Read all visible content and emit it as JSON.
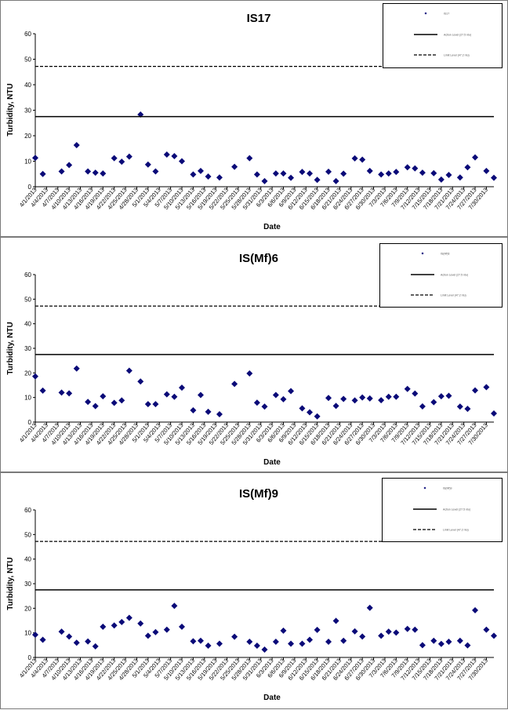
{
  "chart_data": [
    {
      "type": "scatter",
      "title": "IS17",
      "xlabel": "Date",
      "ylabel": "Turbidity, NTU",
      "ylim": [
        0,
        60
      ],
      "yticks": [
        "0",
        "10",
        "20",
        "30",
        "40",
        "50",
        "60"
      ],
      "xticks": [
        "4/1/2013",
        "4/4/2013",
        "4/7/2013",
        "4/10/2013",
        "4/13/2013",
        "4/16/2013",
        "4/19/2013",
        "4/22/2013",
        "4/25/2013",
        "4/28/2013",
        "5/1/2013",
        "5/4/2013",
        "5/7/2013",
        "5/10/2013",
        "5/13/2013",
        "5/16/2013",
        "5/19/2013",
        "5/22/2013",
        "5/25/2013",
        "5/28/2013",
        "5/31/2013",
        "6/3/2013",
        "6/6/2013",
        "6/9/2013",
        "6/12/2013",
        "6/15/2013",
        "6/18/2013",
        "6/21/2013",
        "6/24/2013",
        "6/27/2013",
        "6/30/2013",
        "7/3/2013",
        "7/6/2013",
        "7/9/2013",
        "7/12/2013",
        "7/15/2013",
        "7/18/2013",
        "7/21/2013",
        "7/24/2013",
        "7/27/2013",
        "7/30/2013"
      ],
      "series": [
        {
          "kind": "points",
          "points": [
            [
              "4/1/2013",
              11.3
            ],
            [
              "4/3/2013",
              5.0
            ],
            [
              "4/8/2013",
              6.0
            ],
            [
              "4/10/2013",
              8.5
            ],
            [
              "4/12/2013",
              16.3
            ],
            [
              "4/15/2013",
              6.0
            ],
            [
              "4/17/2013",
              5.5
            ],
            [
              "4/19/2013",
              5.2
            ],
            [
              "4/22/2013",
              11.2
            ],
            [
              "4/24/2013",
              9.8
            ],
            [
              "4/26/2013",
              11.8
            ],
            [
              "4/29/2013",
              28.3
            ],
            [
              "5/1/2013",
              8.7
            ],
            [
              "5/3/2013",
              6.0
            ],
            [
              "5/6/2013",
              12.6
            ],
            [
              "5/8/2013",
              12.0
            ],
            [
              "5/10/2013",
              10.0
            ],
            [
              "5/13/2013",
              4.8
            ],
            [
              "5/15/2013",
              6.2
            ],
            [
              "5/17/2013",
              4.0
            ],
            [
              "5/20/2013",
              3.6
            ],
            [
              "5/24/2013",
              7.8
            ],
            [
              "5/28/2013",
              11.2
            ],
            [
              "5/30/2013",
              4.8
            ],
            [
              "6/1/2013",
              2.2
            ],
            [
              "6/4/2013",
              5.2
            ],
            [
              "6/6/2013",
              5.2
            ],
            [
              "6/8/2013",
              3.5
            ],
            [
              "6/11/2013",
              5.8
            ],
            [
              "6/13/2013",
              5.2
            ],
            [
              "6/15/2013",
              2.7
            ],
            [
              "6/18/2013",
              5.9
            ],
            [
              "6/20/2013",
              2.2
            ],
            [
              "6/22/2013",
              5.1
            ],
            [
              "6/25/2013",
              11.1
            ],
            [
              "6/27/2013",
              10.6
            ],
            [
              "6/29/2013",
              6.2
            ],
            [
              "7/2/2013",
              4.8
            ],
            [
              "7/4/2013",
              5.2
            ],
            [
              "7/6/2013",
              5.8
            ],
            [
              "7/9/2013",
              7.6
            ],
            [
              "7/11/2013",
              7.2
            ],
            [
              "7/13/2013",
              5.5
            ],
            [
              "7/16/2013",
              5.3
            ],
            [
              "7/18/2013",
              2.8
            ],
            [
              "7/20/2013",
              4.6
            ],
            [
              "7/23/2013",
              3.6
            ],
            [
              "7/25/2013",
              7.6
            ],
            [
              "7/27/2013",
              11.5
            ],
            [
              "7/30/2013",
              6.2
            ],
            [
              "8/1/2013",
              3.5
            ]
          ]
        },
        {
          "kind": "solid-hline",
          "value": 27.5
        },
        {
          "kind": "dashed-hline",
          "value": 47.2
        }
      ],
      "legend_position": "top-right",
      "legend": [
        "IS17",
        "Action Level (27.5 ntu)",
        "Limit Level (47.2 ntu)"
      ]
    },
    {
      "type": "scatter",
      "title": "IS(Mf)6",
      "xlabel": "Date",
      "ylabel": "Turbidity, NTU",
      "ylim": [
        0,
        60
      ],
      "yticks": [
        "0",
        "10",
        "20",
        "30",
        "40",
        "50",
        "60"
      ],
      "xticks": [
        "4/1/2013",
        "4/4/2013",
        "4/7/2013",
        "4/10/2013",
        "4/13/2013",
        "4/16/2013",
        "4/19/2013",
        "4/22/2013",
        "4/25/2013",
        "4/28/2013",
        "5/1/2013",
        "5/4/2013",
        "5/7/2013",
        "5/10/2013",
        "5/13/2013",
        "5/16/2013",
        "5/19/2013",
        "5/22/2013",
        "5/25/2013",
        "5/28/2013",
        "5/31/2013",
        "6/3/2013",
        "6/6/2013",
        "6/9/2013",
        "6/12/2013",
        "6/15/2013",
        "6/18/2013",
        "6/21/2013",
        "6/24/2013",
        "6/27/2013",
        "6/30/2013",
        "7/3/2013",
        "7/6/2013",
        "7/9/2013",
        "7/12/2013",
        "7/15/2013",
        "7/18/2013",
        "7/21/2013",
        "7/24/2013",
        "7/27/2013",
        "7/30/2013"
      ],
      "series": [
        {
          "kind": "points",
          "points": [
            [
              "4/1/2013",
              18.6
            ],
            [
              "4/3/2013",
              12.8
            ],
            [
              "4/8/2013",
              12.0
            ],
            [
              "4/10/2013",
              11.7
            ],
            [
              "4/12/2013",
              21.8
            ],
            [
              "4/15/2013",
              8.2
            ],
            [
              "4/17/2013",
              6.5
            ],
            [
              "4/19/2013",
              10.5
            ],
            [
              "4/22/2013",
              7.8
            ],
            [
              "4/24/2013",
              8.8
            ],
            [
              "4/26/2013",
              20.9
            ],
            [
              "4/29/2013",
              16.5
            ],
            [
              "5/1/2013",
              7.3
            ],
            [
              "5/3/2013",
              7.3
            ],
            [
              "5/6/2013",
              11.3
            ],
            [
              "5/8/2013",
              10.3
            ],
            [
              "5/10/2013",
              14.0
            ],
            [
              "5/13/2013",
              4.8
            ],
            [
              "5/15/2013",
              11.0
            ],
            [
              "5/17/2013",
              4.2
            ],
            [
              "5/20/2013",
              3.2
            ],
            [
              "5/24/2013",
              15.5
            ],
            [
              "5/28/2013",
              19.8
            ],
            [
              "5/30/2013",
              7.9
            ],
            [
              "6/1/2013",
              6.3
            ],
            [
              "6/4/2013",
              11.0
            ],
            [
              "6/6/2013",
              9.3
            ],
            [
              "6/8/2013",
              12.6
            ],
            [
              "6/11/2013",
              5.6
            ],
            [
              "6/13/2013",
              4.0
            ],
            [
              "6/15/2013",
              2.3
            ],
            [
              "6/18/2013",
              9.8
            ],
            [
              "6/20/2013",
              6.6
            ],
            [
              "6/22/2013",
              9.4
            ],
            [
              "6/25/2013",
              8.8
            ],
            [
              "6/27/2013",
              10.0
            ],
            [
              "6/29/2013",
              9.6
            ],
            [
              "7/2/2013",
              8.9
            ],
            [
              "7/4/2013",
              10.3
            ],
            [
              "7/6/2013",
              10.3
            ],
            [
              "7/9/2013",
              13.5
            ],
            [
              "7/11/2013",
              11.6
            ],
            [
              "7/13/2013",
              6.4
            ],
            [
              "7/16/2013",
              8.1
            ],
            [
              "7/18/2013",
              10.5
            ],
            [
              "7/20/2013",
              10.7
            ],
            [
              "7/23/2013",
              6.3
            ],
            [
              "7/25/2013",
              5.4
            ],
            [
              "7/27/2013",
              12.9
            ],
            [
              "7/30/2013",
              14.2
            ],
            [
              "8/1/2013",
              3.5
            ]
          ]
        },
        {
          "kind": "solid-hline",
          "value": 27.5
        },
        {
          "kind": "dashed-hline",
          "value": 47.2
        }
      ],
      "legend_position": "top-right",
      "legend": [
        "IS(Mf)6",
        "Action Level (27.5 ntu)",
        "Limit Level (47.2 ntu)"
      ]
    },
    {
      "type": "scatter",
      "title": "IS(Mf)9",
      "xlabel": "Date",
      "ylabel": "Turbidity, NTU",
      "ylim": [
        0,
        60
      ],
      "yticks": [
        "0",
        "10",
        "20",
        "30",
        "40",
        "50",
        "60"
      ],
      "xticks": [
        "4/1/2013",
        "4/4/2013",
        "4/7/2013",
        "4/10/2013",
        "4/13/2013",
        "4/16/2013",
        "4/19/2013",
        "4/22/2013",
        "4/25/2013",
        "4/28/2013",
        "5/1/2013",
        "5/4/2013",
        "5/7/2013",
        "5/10/2013",
        "5/13/2013",
        "5/16/2013",
        "5/19/2013",
        "5/22/2013",
        "5/25/2013",
        "5/28/2013",
        "5/31/2013",
        "6/3/2013",
        "6/6/2013",
        "6/9/2013",
        "6/12/2013",
        "6/15/2013",
        "6/18/2013",
        "6/21/2013",
        "6/24/2013",
        "6/27/2013",
        "6/30/2013",
        "7/3/2013",
        "7/6/2013",
        "7/9/2013",
        "7/12/2013",
        "7/15/2013",
        "7/18/2013",
        "7/21/2013",
        "7/24/2013",
        "7/27/2013",
        "7/30/2013"
      ],
      "series": [
        {
          "kind": "points",
          "points": [
            [
              "4/1/2013",
              9.2
            ],
            [
              "4/3/2013",
              7.2
            ],
            [
              "4/8/2013",
              10.5
            ],
            [
              "4/10/2013",
              8.5
            ],
            [
              "4/12/2013",
              6.0
            ],
            [
              "4/15/2013",
              6.5
            ],
            [
              "4/17/2013",
              4.5
            ],
            [
              "4/19/2013",
              12.5
            ],
            [
              "4/22/2013",
              13.0
            ],
            [
              "4/24/2013",
              14.4
            ],
            [
              "4/26/2013",
              16.1
            ],
            [
              "4/29/2013",
              13.8
            ],
            [
              "5/1/2013",
              8.8
            ],
            [
              "5/3/2013",
              10.3
            ],
            [
              "5/6/2013",
              11.3
            ],
            [
              "5/8/2013",
              21.0
            ],
            [
              "5/10/2013",
              12.5
            ],
            [
              "5/13/2013",
              6.6
            ],
            [
              "5/15/2013",
              6.8
            ],
            [
              "5/17/2013",
              4.8
            ],
            [
              "5/20/2013",
              5.6
            ],
            [
              "5/24/2013",
              8.4
            ],
            [
              "5/28/2013",
              6.4
            ],
            [
              "5/30/2013",
              4.8
            ],
            [
              "6/1/2013",
              3.2
            ],
            [
              "6/4/2013",
              6.4
            ],
            [
              "6/6/2013",
              10.9
            ],
            [
              "6/8/2013",
              5.6
            ],
            [
              "6/11/2013",
              5.6
            ],
            [
              "6/13/2013",
              7.2
            ],
            [
              "6/15/2013",
              11.2
            ],
            [
              "6/18/2013",
              6.4
            ],
            [
              "6/20/2013",
              14.9
            ],
            [
              "6/22/2013",
              6.8
            ],
            [
              "6/25/2013",
              10.6
            ],
            [
              "6/27/2013",
              8.5
            ],
            [
              "6/29/2013",
              20.2
            ],
            [
              "7/2/2013",
              8.8
            ],
            [
              "7/4/2013",
              10.5
            ],
            [
              "7/6/2013",
              10.1
            ],
            [
              "7/9/2013",
              11.6
            ],
            [
              "7/11/2013",
              11.3
            ],
            [
              "7/13/2013",
              5.0
            ],
            [
              "7/16/2013",
              6.8
            ],
            [
              "7/18/2013",
              5.5
            ],
            [
              "7/20/2013",
              6.4
            ],
            [
              "7/23/2013",
              6.8
            ],
            [
              "7/25/2013",
              4.9
            ],
            [
              "7/27/2013",
              19.2
            ],
            [
              "7/30/2013",
              11.3
            ],
            [
              "8/1/2013",
              8.8
            ]
          ]
        },
        {
          "kind": "solid-hline",
          "value": 27.5
        },
        {
          "kind": "dashed-hline",
          "value": 47.2
        }
      ],
      "legend_position": "top-right",
      "legend": [
        "IS(Mf)9",
        "Action Level (27.5 ntu)",
        "Limit Level (47.2 ntu)"
      ]
    }
  ]
}
